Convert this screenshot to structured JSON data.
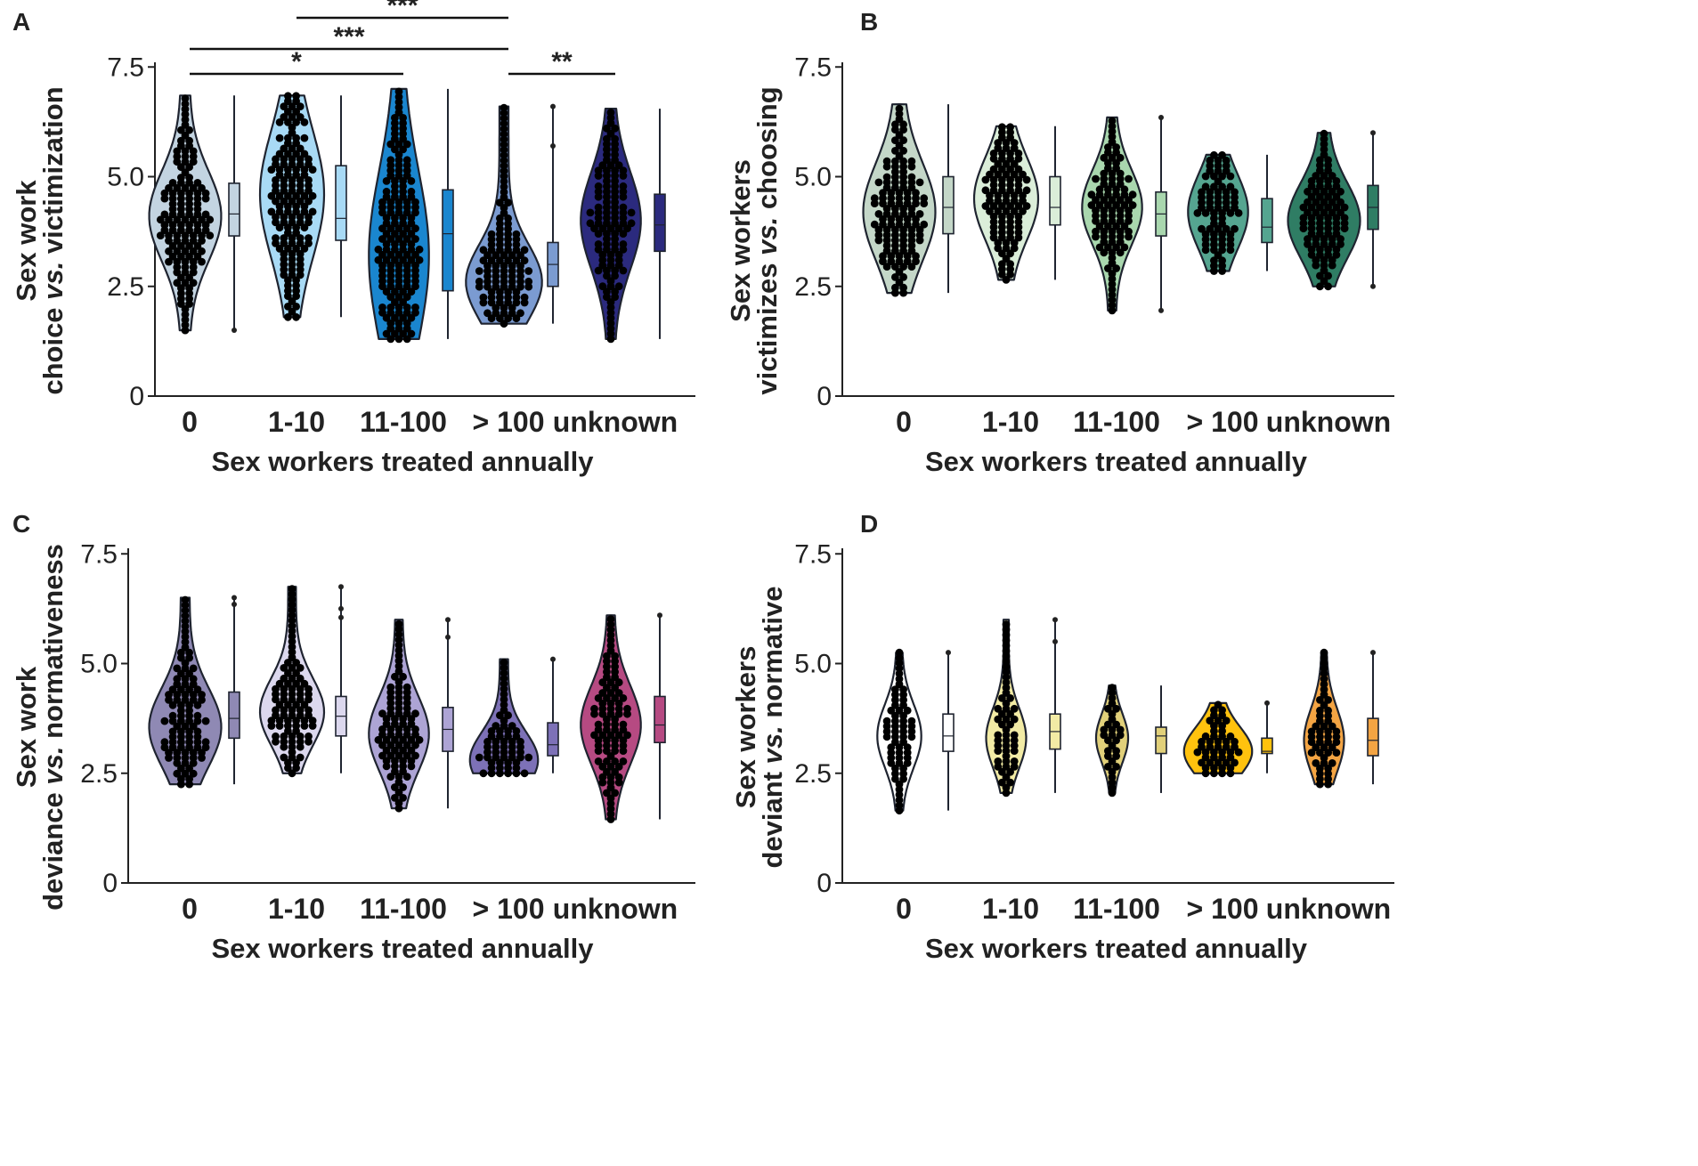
{
  "figure": {
    "panels": [
      {
        "letter": "A",
        "ylabel_line1": "Sex work",
        "ylabel_line2_pre": "choice ",
        "ylabel_line2_italic": "vs.",
        "ylabel_line2_post": " victimization",
        "xlabel": "Sex workers treated annually",
        "colors": [
          "#c3d4e1",
          "#a8daf5",
          "#1a86cf",
          "#7b9bd1",
          "#2b2a7e"
        ],
        "box_colors": [
          "#c3d4e1",
          "#a8daf5",
          "#1a86cf",
          "#7b9bd1",
          "#2b2a7e"
        ]
      },
      {
        "letter": "B",
        "ylabel_line1": "Sex workers",
        "ylabel_line2_pre": "victimizes ",
        "ylabel_line2_italic": "vs.",
        "ylabel_line2_post": " choosing",
        "xlabel": "Sex workers treated annually",
        "colors": [
          "#c4d7c8",
          "#dbeed9",
          "#a9d7ae",
          "#55a590",
          "#2f7d64"
        ],
        "box_colors": [
          "#c4d7c8",
          "#dbeed9",
          "#a9d7ae",
          "#55a590",
          "#2f7d64"
        ]
      },
      {
        "letter": "C",
        "ylabel_line1": "Sex work",
        "ylabel_line2_pre": "deviance ",
        "ylabel_line2_italic": "vs.",
        "ylabel_line2_post": " normativeness",
        "xlabel": "Sex workers treated annually",
        "colors": [
          "#8f89b4",
          "#dcd8ee",
          "#ada4d5",
          "#7d71b7",
          "#b64a82"
        ],
        "box_colors": [
          "#8f89b4",
          "#dcd8ee",
          "#ada4d5",
          "#7d71b7",
          "#b64a82"
        ]
      },
      {
        "letter": "D",
        "ylabel_line1": "Sex workers",
        "ylabel_line2_pre": "deviant ",
        "ylabel_line2_italic": "vs.",
        "ylabel_line2_post": " normative",
        "xlabel": "Sex workers treated annually",
        "colors": [
          "#ffffff",
          "#f2eba5",
          "#e1d07a",
          "#ffc20e",
          "#f3a443"
        ],
        "box_colors": [
          "#ffffff",
          "#f2eba5",
          "#e1d07a",
          "#ffc20e",
          "#f3a443"
        ]
      }
    ]
  },
  "chart_data": [
    {
      "panel": "A",
      "type": "violin",
      "title": "",
      "xlabel": "Sex workers treated annually",
      "ylabel": "Sex work choice vs. victimization",
      "categories": [
        "0",
        "1-10",
        "11-100",
        "> 100",
        "unknown"
      ],
      "yticks": [
        "0",
        "2.5",
        "5.0",
        "7.5"
      ],
      "ylim": [
        0,
        7.5
      ],
      "series": [
        {
          "name": "0",
          "min": 1.5,
          "q1": 3.65,
          "median": 4.15,
          "q3": 4.85,
          "max": 6.85,
          "outliers": [
            1.5
          ],
          "density_peak": 4.1,
          "width": 0.9
        },
        {
          "name": "1-10",
          "min": 1.8,
          "q1": 3.55,
          "median": 4.05,
          "q3": 5.25,
          "max": 6.85,
          "outliers": [],
          "density_peak": 4.6,
          "width": 0.8
        },
        {
          "name": "11-100",
          "min": 1.3,
          "q1": 2.4,
          "median": 3.7,
          "q3": 4.7,
          "max": 7.0,
          "outliers": [],
          "density_peak": 3.2,
          "width": 0.75
        },
        {
          "name": "> 100",
          "min": 1.65,
          "q1": 2.5,
          "median": 3.0,
          "q3": 3.5,
          "max": 6.6,
          "outliers": [
            5.7,
            6.6
          ],
          "density_peak": 2.6,
          "width": 0.95
        },
        {
          "name": "unknown",
          "min": 1.3,
          "q1": 3.3,
          "median": 3.9,
          "q3": 4.6,
          "max": 6.55,
          "outliers": [],
          "density_peak": 4.0,
          "width": 0.75
        }
      ],
      "annotations": [
        {
          "from": "0",
          "to": "11-100",
          "label": "*"
        },
        {
          "from": "0",
          "to": "> 100",
          "label": "***"
        },
        {
          "from": "1-10",
          "to": "> 100",
          "label": "***"
        },
        {
          "from": "> 100",
          "to": "unknown",
          "label": "**"
        }
      ]
    },
    {
      "panel": "B",
      "type": "violin",
      "title": "",
      "xlabel": "Sex workers treated annually",
      "ylabel": "Sex workers victimizes vs. choosing",
      "categories": [
        "0",
        "1-10",
        "11-100",
        "> 100",
        "unknown"
      ],
      "yticks": [
        "0",
        "2.5",
        "5.0",
        "7.5"
      ],
      "ylim": [
        0,
        7.5
      ],
      "series": [
        {
          "name": "0",
          "min": 2.35,
          "q1": 3.7,
          "median": 4.3,
          "q3": 5.0,
          "max": 6.65,
          "outliers": [],
          "density_peak": 4.2,
          "width": 0.9
        },
        {
          "name": "1-10",
          "min": 2.65,
          "q1": 3.9,
          "median": 4.3,
          "q3": 5.0,
          "max": 6.15,
          "outliers": [],
          "density_peak": 4.5,
          "width": 0.8
        },
        {
          "name": "11-100",
          "min": 1.95,
          "q1": 3.65,
          "median": 4.15,
          "q3": 4.65,
          "max": 6.35,
          "outliers": [
            1.95,
            6.35
          ],
          "density_peak": 4.3,
          "width": 0.75
        },
        {
          "name": "> 100",
          "min": 2.85,
          "q1": 3.5,
          "median": 3.85,
          "q3": 4.5,
          "max": 5.5,
          "outliers": [],
          "density_peak": 4.2,
          "width": 0.75
        },
        {
          "name": "unknown",
          "min": 2.5,
          "q1": 3.8,
          "median": 4.3,
          "q3": 4.8,
          "max": 6.0,
          "outliers": [
            2.5,
            6.0
          ],
          "density_peak": 4.0,
          "width": 0.9
        }
      ]
    },
    {
      "panel": "C",
      "type": "violin",
      "title": "",
      "xlabel": "Sex workers treated annually",
      "ylabel": "Sex work deviance vs. normativeness",
      "categories": [
        "0",
        "1-10",
        "11-100",
        "> 100",
        "unknown"
      ],
      "yticks": [
        "0",
        "2.5",
        "5.0",
        "7.5"
      ],
      "ylim": [
        0,
        7.5
      ],
      "series": [
        {
          "name": "0",
          "min": 2.25,
          "q1": 3.3,
          "median": 3.75,
          "q3": 4.35,
          "max": 6.5,
          "outliers": [
            6.35,
            6.5
          ],
          "density_peak": 3.55,
          "width": 0.9
        },
        {
          "name": "1-10",
          "min": 2.5,
          "q1": 3.35,
          "median": 3.8,
          "q3": 4.25,
          "max": 6.75,
          "outliers": [
            6.05,
            6.25,
            6.75
          ],
          "density_peak": 3.9,
          "width": 0.8
        },
        {
          "name": "11-100",
          "min": 1.7,
          "q1": 3.0,
          "median": 3.5,
          "q3": 4.0,
          "max": 6.0,
          "outliers": [
            5.6,
            6.0
          ],
          "density_peak": 3.4,
          "width": 0.75
        },
        {
          "name": "> 100",
          "min": 2.5,
          "q1": 2.9,
          "median": 3.15,
          "q3": 3.65,
          "max": 5.1,
          "outliers": [
            5.1
          ],
          "density_peak": 2.8,
          "width": 0.85
        },
        {
          "name": "unknown",
          "min": 1.45,
          "q1": 3.2,
          "median": 3.6,
          "q3": 4.25,
          "max": 6.1,
          "outliers": [
            6.1
          ],
          "density_peak": 3.6,
          "width": 0.75
        }
      ]
    },
    {
      "panel": "D",
      "type": "violin",
      "title": "",
      "xlabel": "Sex workers treated annually",
      "ylabel": "Sex workers deviant vs. normative",
      "categories": [
        "0",
        "1-10",
        "11-100",
        "> 100",
        "unknown"
      ],
      "yticks": [
        "0",
        "2.5",
        "5.0",
        "7.5"
      ],
      "ylim": [
        0,
        7.5
      ],
      "series": [
        {
          "name": "0",
          "min": 1.65,
          "q1": 3.0,
          "median": 3.35,
          "q3": 3.85,
          "max": 5.25,
          "outliers": [
            5.25
          ],
          "density_peak": 3.35,
          "width": 0.55
        },
        {
          "name": "1-10",
          "min": 2.05,
          "q1": 3.05,
          "median": 3.45,
          "q3": 3.85,
          "max": 6.0,
          "outliers": [
            5.5,
            6.0
          ],
          "density_peak": 3.3,
          "width": 0.5
        },
        {
          "name": "11-100",
          "min": 2.05,
          "q1": 2.95,
          "median": 3.35,
          "q3": 3.55,
          "max": 4.5,
          "outliers": [],
          "density_peak": 3.3,
          "width": 0.4
        },
        {
          "name": "> 100",
          "min": 2.5,
          "q1": 2.95,
          "median": 3.0,
          "q3": 3.3,
          "max": 4.1,
          "outliers": [
            4.1
          ],
          "density_peak": 3.0,
          "width": 0.85
        },
        {
          "name": "unknown",
          "min": 2.25,
          "q1": 2.9,
          "median": 3.25,
          "q3": 3.75,
          "max": 5.25,
          "outliers": [
            5.25
          ],
          "density_peak": 3.25,
          "width": 0.5
        }
      ]
    }
  ]
}
